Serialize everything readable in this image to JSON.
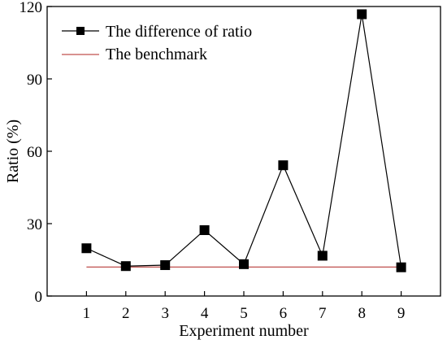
{
  "chart_data": {
    "type": "line",
    "xlabel": "Experiment number",
    "ylabel": "Ratio (%)",
    "xlim": [
      0,
      10
    ],
    "ylim": [
      0,
      120
    ],
    "x_ticks": [
      1,
      2,
      3,
      4,
      5,
      6,
      7,
      8,
      9
    ],
    "y_ticks": [
      0,
      30,
      60,
      90,
      120
    ],
    "grid": false,
    "legend_position": "top-left",
    "series": [
      {
        "name": "The difference of ratio",
        "color": "#000000",
        "marker": "square",
        "x": [
          1,
          2,
          3,
          4,
          5,
          6,
          7,
          8,
          9
        ],
        "values": [
          19.8,
          12.4,
          12.8,
          27.3,
          13.2,
          54.2,
          16.7,
          116.8,
          11.9
        ]
      },
      {
        "name": "The benchmark",
        "color": "#c0504d",
        "marker": "none",
        "x": [
          1,
          9
        ],
        "values": [
          12,
          12
        ]
      }
    ]
  }
}
